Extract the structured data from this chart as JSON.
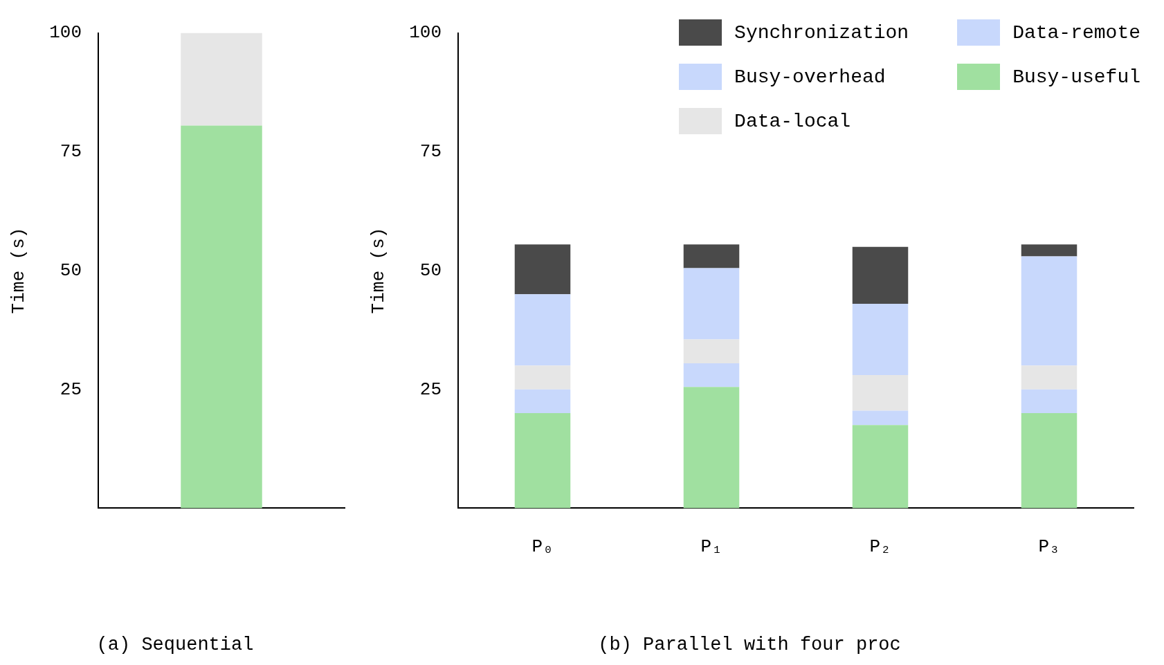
{
  "chart_data": [
    {
      "type": "bar",
      "title": "(a) Sequential",
      "ylabel": "Time (s)",
      "categories": [
        null
      ],
      "stacked": true,
      "ylim": [
        0,
        100
      ],
      "yticks": [
        25,
        50,
        75,
        100
      ],
      "grid": false,
      "legend": false,
      "series": [
        {
          "color": "#a0e0a0",
          "values": [
            80.5
          ]
        },
        {
          "color": "#e6e6e6",
          "values": [
            19.5
          ]
        }
      ]
    },
    {
      "type": "bar",
      "title": "(b) Parallel with four proc",
      "ylabel": "Time (s)",
      "categories": [
        "P₀",
        "P₁",
        "P₂",
        "P₃"
      ],
      "stacked": true,
      "ylim": [
        0,
        100
      ],
      "yticks": [
        25,
        50,
        75,
        100
      ],
      "grid": false,
      "legend": "top right",
      "series": [
        {
          "name": "Busy-useful",
          "color": "#a0e0a0",
          "values": [
            20,
            25.5,
            17.5,
            20
          ]
        },
        {
          "name": "Data-remote",
          "color": "#c8d8fc",
          "values": [
            5,
            5,
            3,
            5
          ]
        },
        {
          "name": "Data-local",
          "color": "#e6e6e6",
          "values": [
            5,
            5,
            7.5,
            5
          ]
        },
        {
          "name": "Busy-overhead",
          "color": "#c8d8fc",
          "values": [
            15,
            15,
            15,
            23
          ]
        },
        {
          "name": "Synchronization",
          "color": "#4a4a4a",
          "values": [
            10.5,
            5,
            12,
            2.5
          ]
        }
      ]
    }
  ]
}
